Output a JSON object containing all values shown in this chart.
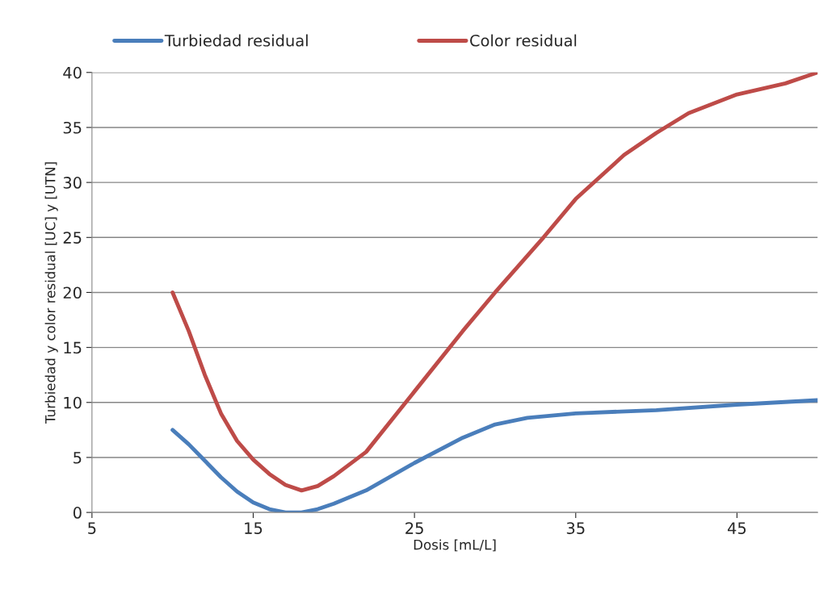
{
  "chart_data": {
    "type": "line",
    "xlabel": "Dosis [mL/L]",
    "ylabel": "Turbiedad y color residual [UC] y [UTN]",
    "series": [
      {
        "name": "Turbiedad residual",
        "color": "#4a7ebb",
        "x": [
          10,
          11,
          12,
          13,
          14,
          15,
          16,
          17,
          18,
          19,
          20,
          22,
          25,
          28,
          30,
          32,
          35,
          40,
          45,
          50
        ],
        "values": [
          7.5,
          6.2,
          4.7,
          3.2,
          1.9,
          0.9,
          0.3,
          0,
          0,
          0.3,
          0.8,
          2,
          4.5,
          6.8,
          8,
          8.6,
          9,
          9.3,
          9.8,
          10.2
        ]
      },
      {
        "name": "Color residual",
        "color": "#be4b48",
        "x": [
          10,
          11,
          12,
          13,
          14,
          15,
          16,
          17,
          18,
          19,
          20,
          22,
          25,
          28,
          30,
          33,
          35,
          38,
          40,
          42,
          45,
          48,
          50
        ],
        "values": [
          20,
          16.5,
          12.5,
          9,
          6.5,
          4.8,
          3.5,
          2.5,
          2,
          2.4,
          3.3,
          5.5,
          11,
          16.5,
          20,
          25,
          28.5,
          32.5,
          34.5,
          36.3,
          38,
          39,
          40
        ]
      }
    ],
    "xlim": [
      5,
      50
    ],
    "xticks": [
      5,
      15,
      25,
      35,
      45
    ],
    "ylim": [
      0,
      40
    ],
    "yticks": [
      0,
      5,
      10,
      15,
      20,
      25,
      30,
      35,
      40
    ],
    "grid": "y",
    "legend": "top",
    "marker": "none",
    "line_style": "solid"
  }
}
